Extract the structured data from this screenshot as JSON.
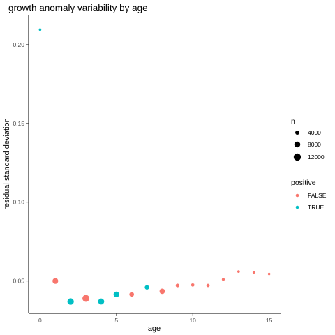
{
  "chart_data": {
    "type": "scatter",
    "title": "growth anomaly variability by age",
    "xlabel": "age",
    "ylabel": "residual standard deviation",
    "xlim": [
      -0.75,
      15.75
    ],
    "ylim": [
      0.0295,
      0.2185
    ],
    "x_ticks": [
      0,
      5,
      10,
      15
    ],
    "x_tick_labels": [
      "0",
      "5",
      "10",
      "15"
    ],
    "y_ticks": [
      0.05,
      0.1,
      0.15,
      0.2
    ],
    "y_tick_labels": [
      "0.05",
      "0.10",
      "0.15",
      "0.20"
    ],
    "grid": false,
    "legend_position": "right",
    "size_legend": {
      "title": "n",
      "values": [
        4000,
        8000,
        12000
      ],
      "labels": [
        "4000",
        "8000",
        "12000"
      ]
    },
    "color_legend": {
      "title": "positive",
      "entries": [
        {
          "label": "FALSE",
          "color": "#F8766D"
        },
        {
          "label": "TRUE",
          "color": "#00BFC4"
        }
      ]
    },
    "points": [
      {
        "x": 0,
        "y": 0.2095,
        "positive": "TRUE",
        "n": 400
      },
      {
        "x": 1,
        "y": 0.05,
        "positive": "FALSE",
        "n": 7500
      },
      {
        "x": 2,
        "y": 0.037,
        "positive": "TRUE",
        "n": 9500
      },
      {
        "x": 3,
        "y": 0.039,
        "positive": "FALSE",
        "n": 11000
      },
      {
        "x": 4,
        "y": 0.037,
        "positive": "TRUE",
        "n": 8500
      },
      {
        "x": 5,
        "y": 0.0415,
        "positive": "TRUE",
        "n": 7500
      },
      {
        "x": 6,
        "y": 0.0415,
        "positive": "FALSE",
        "n": 5000
      },
      {
        "x": 7,
        "y": 0.046,
        "positive": "TRUE",
        "n": 4500
      },
      {
        "x": 8,
        "y": 0.0435,
        "positive": "FALSE",
        "n": 6500
      },
      {
        "x": 9,
        "y": 0.0472,
        "positive": "FALSE",
        "n": 3000
      },
      {
        "x": 10,
        "y": 0.0475,
        "positive": "FALSE",
        "n": 2500
      },
      {
        "x": 11,
        "y": 0.0472,
        "positive": "FALSE",
        "n": 2500
      },
      {
        "x": 12,
        "y": 0.051,
        "positive": "FALSE",
        "n": 2000
      },
      {
        "x": 13,
        "y": 0.056,
        "positive": "FALSE",
        "n": 1500
      },
      {
        "x": 14,
        "y": 0.0555,
        "positive": "FALSE",
        "n": 1200
      },
      {
        "x": 15,
        "y": 0.0545,
        "positive": "FALSE",
        "n": 1300
      }
    ]
  }
}
